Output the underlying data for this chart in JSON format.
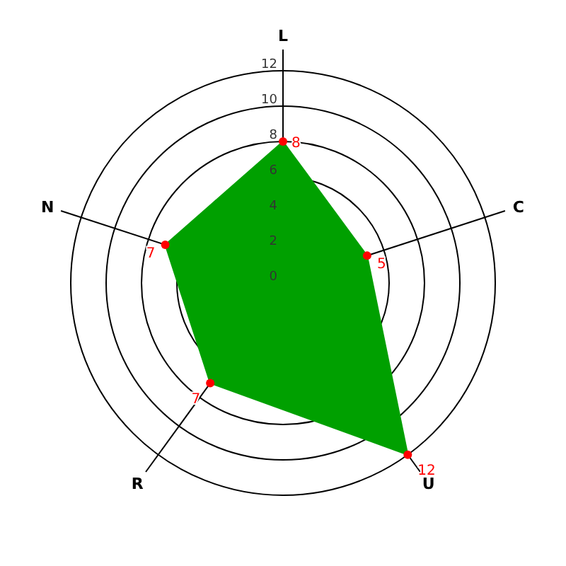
{
  "chart_data": {
    "type": "radar",
    "categories": [
      "L",
      "C",
      "U",
      "R",
      "N"
    ],
    "series": [
      {
        "color": "#00a000",
        "values": [
          8,
          5,
          12,
          7,
          7
        ]
      }
    ],
    "ylim": [
      0,
      12
    ],
    "yticks": [
      0,
      2,
      4,
      6,
      8,
      10,
      12
    ],
    "grid": true,
    "marker": "circle",
    "data_labels": true
  }
}
